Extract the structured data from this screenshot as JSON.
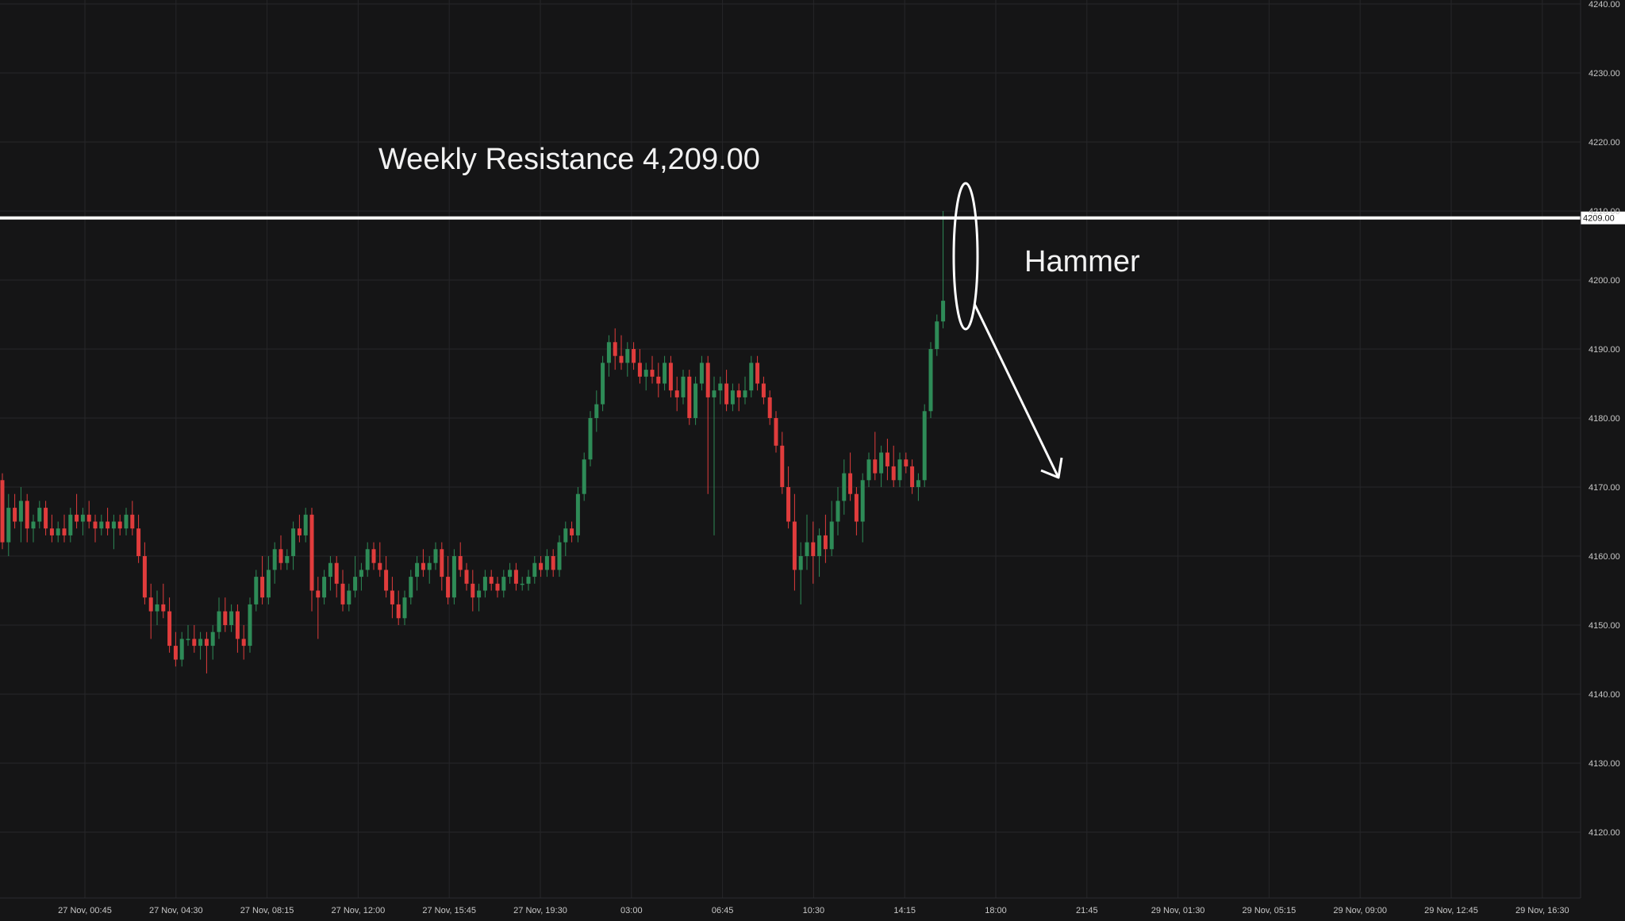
{
  "chart_data": {
    "type": "candlestick",
    "title": "",
    "ylim": [
      4115,
      4241
    ],
    "grid": true,
    "y_ticks": [
      "4240.00",
      "4230.00",
      "4220.00",
      "4210.00",
      "4200.00",
      "4190.00",
      "4180.00",
      "4170.00",
      "4160.00",
      "4150.00",
      "4140.00",
      "4130.00",
      "4120.00"
    ],
    "x_ticks": [
      "27 Nov, 00:45",
      "27 Nov, 04:30",
      "27 Nov, 08:15",
      "27 Nov, 12:00",
      "27 Nov, 15:45",
      "27 Nov, 19:30",
      "03:00",
      "06:45",
      "10:30",
      "14:15",
      "18:00",
      "21:45",
      "29 Nov, 01:30",
      "29 Nov, 05:15",
      "29 Nov, 09:00",
      "29 Nov, 12:45",
      "29 Nov, 16:30"
    ],
    "resistance": {
      "value": 4209,
      "tag": "4209.00",
      "label": "Weekly Resistance 4,209.00"
    },
    "pattern_label": "Hammer",
    "colors": {
      "up": "#2e8b57",
      "down": "#e03c3c",
      "grid": "#262629",
      "line": "#ffffff",
      "text": "#c8c8c8"
    },
    "candles": [
      [
        4171,
        4172,
        4161,
        4162
      ],
      [
        4162,
        4169,
        4160,
        4167
      ],
      [
        4167,
        4169,
        4164,
        4165
      ],
      [
        4165,
        4170,
        4162,
        4168
      ],
      [
        4168,
        4169,
        4162,
        4164
      ],
      [
        4164,
        4166,
        4162,
        4165
      ],
      [
        4165,
        4168,
        4164,
        4167
      ],
      [
        4167,
        4168,
        4163,
        4164
      ],
      [
        4164,
        4166,
        4162,
        4163
      ],
      [
        4163,
        4165,
        4162,
        4164
      ],
      [
        4164,
        4166,
        4162,
        4163
      ],
      [
        4163,
        4167,
        4162,
        4166
      ],
      [
        4166,
        4169,
        4164,
        4165
      ],
      [
        4165,
        4167,
        4163,
        4166
      ],
      [
        4166,
        4168,
        4164,
        4165
      ],
      [
        4165,
        4166,
        4162,
        4164
      ],
      [
        4164,
        4166,
        4163,
        4165
      ],
      [
        4165,
        4167,
        4163,
        4164
      ],
      [
        4164,
        4166,
        4161,
        4165
      ],
      [
        4165,
        4166,
        4163,
        4164
      ],
      [
        4164,
        4167,
        4163,
        4166
      ],
      [
        4166,
        4168,
        4163,
        4164
      ],
      [
        4164,
        4166,
        4159,
        4160
      ],
      [
        4160,
        4162,
        4153,
        4154
      ],
      [
        4154,
        4156,
        4148,
        4152
      ],
      [
        4152,
        4155,
        4150,
        4153
      ],
      [
        4153,
        4156,
        4151,
        4152
      ],
      [
        4152,
        4154,
        4146,
        4147
      ],
      [
        4147,
        4149,
        4144,
        4145
      ],
      [
        4145,
        4149,
        4144,
        4148
      ],
      [
        4148,
        4150,
        4147,
        4148
      ],
      [
        4148,
        4150,
        4146,
        4147
      ],
      [
        4147,
        4149,
        4145,
        4148
      ],
      [
        4148,
        4149,
        4143,
        4147
      ],
      [
        4147,
        4150,
        4145,
        4149
      ],
      [
        4149,
        4154,
        4148,
        4152
      ],
      [
        4152,
        4154,
        4149,
        4150
      ],
      [
        4150,
        4153,
        4149,
        4152
      ],
      [
        4152,
        4153,
        4146,
        4148
      ],
      [
        4148,
        4150,
        4145,
        4147
      ],
      [
        4147,
        4154,
        4146,
        4153
      ],
      [
        4153,
        4158,
        4152,
        4157
      ],
      [
        4157,
        4160,
        4153,
        4154
      ],
      [
        4154,
        4160,
        4153,
        4158
      ],
      [
        4158,
        4162,
        4156,
        4161
      ],
      [
        4161,
        4163,
        4158,
        4159
      ],
      [
        4159,
        4161,
        4158,
        4160
      ],
      [
        4160,
        4165,
        4158,
        4164
      ],
      [
        4164,
        4166,
        4162,
        4163
      ],
      [
        4163,
        4167,
        4162,
        4166
      ],
      [
        4166,
        4167,
        4152,
        4155
      ],
      [
        4155,
        4157,
        4148,
        4154
      ],
      [
        4154,
        4158,
        4153,
        4157
      ],
      [
        4157,
        4160,
        4155,
        4159
      ],
      [
        4159,
        4160,
        4154,
        4156
      ],
      [
        4156,
        4158,
        4152,
        4153
      ],
      [
        4153,
        4156,
        4152,
        4155
      ],
      [
        4155,
        4160,
        4154,
        4157
      ],
      [
        4157,
        4159,
        4155,
        4158
      ],
      [
        4158,
        4162,
        4157,
        4161
      ],
      [
        4161,
        4162,
        4158,
        4159
      ],
      [
        4159,
        4162,
        4157,
        4158
      ],
      [
        4158,
        4160,
        4154,
        4155
      ],
      [
        4155,
        4157,
        4151,
        4153
      ],
      [
        4153,
        4155,
        4150,
        4151
      ],
      [
        4151,
        4155,
        4150,
        4154
      ],
      [
        4154,
        4158,
        4153,
        4157
      ],
      [
        4157,
        4160,
        4155,
        4159
      ],
      [
        4159,
        4161,
        4157,
        4158
      ],
      [
        4158,
        4160,
        4156,
        4159
      ],
      [
        4159,
        4162,
        4158,
        4161
      ],
      [
        4161,
        4162,
        4155,
        4157
      ],
      [
        4157,
        4160,
        4153,
        4154
      ],
      [
        4154,
        4161,
        4153,
        4160
      ],
      [
        4160,
        4162,
        4157,
        4158
      ],
      [
        4158,
        4159,
        4155,
        4156
      ],
      [
        4156,
        4158,
        4152,
        4154
      ],
      [
        4154,
        4156,
        4152,
        4155
      ],
      [
        4155,
        4158,
        4154,
        4157
      ],
      [
        4157,
        4158,
        4155,
        4156
      ],
      [
        4156,
        4157,
        4154,
        4155
      ],
      [
        4155,
        4158,
        4154,
        4157
      ],
      [
        4157,
        4159,
        4156,
        4158
      ],
      [
        4158,
        4159,
        4155,
        4156
      ],
      [
        4156,
        4157,
        4155,
        4156
      ],
      [
        4156,
        4158,
        4155,
        4157
      ],
      [
        4157,
        4160,
        4156,
        4159
      ],
      [
        4159,
        4160,
        4157,
        4158
      ],
      [
        4158,
        4161,
        4157,
        4160
      ],
      [
        4160,
        4161,
        4157,
        4158
      ],
      [
        4158,
        4163,
        4157,
        4162
      ],
      [
        4162,
        4165,
        4160,
        4164
      ],
      [
        4164,
        4165,
        4162,
        4163
      ],
      [
        4163,
        4170,
        4162,
        4169
      ],
      [
        4169,
        4175,
        4168,
        4174
      ],
      [
        4174,
        4181,
        4173,
        4180
      ],
      [
        4180,
        4184,
        4178,
        4182
      ],
      [
        4182,
        4189,
        4181,
        4188
      ],
      [
        4188,
        4192,
        4186,
        4191
      ],
      [
        4191,
        4193,
        4187,
        4189
      ],
      [
        4189,
        4192,
        4187,
        4188
      ],
      [
        4188,
        4191,
        4186,
        4190
      ],
      [
        4190,
        4191,
        4187,
        4188
      ],
      [
        4188,
        4190,
        4185,
        4186
      ],
      [
        4186,
        4188,
        4184,
        4187
      ],
      [
        4187,
        4189,
        4185,
        4186
      ],
      [
        4186,
        4188,
        4183,
        4185
      ],
      [
        4185,
        4189,
        4184,
        4188
      ],
      [
        4188,
        4189,
        4183,
        4184
      ],
      [
        4184,
        4186,
        4181,
        4183
      ],
      [
        4183,
        4187,
        4182,
        4186
      ],
      [
        4186,
        4187,
        4179,
        4180
      ],
      [
        4180,
        4186,
        4179,
        4185
      ],
      [
        4185,
        4189,
        4184,
        4188
      ],
      [
        4188,
        4189,
        4169,
        4183
      ],
      [
        4183,
        4186,
        4163,
        4184
      ],
      [
        4184,
        4186,
        4182,
        4185
      ],
      [
        4185,
        4187,
        4181,
        4182
      ],
      [
        4182,
        4185,
        4181,
        4184
      ],
      [
        4184,
        4185,
        4181,
        4183
      ],
      [
        4183,
        4186,
        4182,
        4184
      ],
      [
        4184,
        4189,
        4183,
        4188
      ],
      [
        4188,
        4189,
        4184,
        4185
      ],
      [
        4185,
        4186,
        4182,
        4183
      ],
      [
        4183,
        4184,
        4179,
        4180
      ],
      [
        4180,
        4181,
        4175,
        4176
      ],
      [
        4176,
        4178,
        4169,
        4170
      ],
      [
        4170,
        4173,
        4164,
        4165
      ],
      [
        4165,
        4169,
        4155,
        4158
      ],
      [
        4158,
        4162,
        4153,
        4160
      ],
      [
        4160,
        4166,
        4158,
        4162
      ],
      [
        4162,
        4165,
        4156,
        4160
      ],
      [
        4160,
        4164,
        4157,
        4163
      ],
      [
        4163,
        4166,
        4159,
        4161
      ],
      [
        4161,
        4168,
        4160,
        4165
      ],
      [
        4165,
        4170,
        4163,
        4168
      ],
      [
        4168,
        4174,
        4166,
        4172
      ],
      [
        4172,
        4175,
        4168,
        4169
      ],
      [
        4169,
        4170,
        4163,
        4165
      ],
      [
        4165,
        4172,
        4162,
        4171
      ],
      [
        4171,
        4175,
        4170,
        4174
      ],
      [
        4174,
        4178,
        4171,
        4172
      ],
      [
        4172,
        4176,
        4170,
        4175
      ],
      [
        4175,
        4177,
        4171,
        4173
      ],
      [
        4173,
        4176,
        4170,
        4171
      ],
      [
        4171,
        4175,
        4170,
        4174
      ],
      [
        4174,
        4175,
        4172,
        4173
      ],
      [
        4173,
        4174,
        4169,
        4170
      ],
      [
        4170,
        4172,
        4168,
        4171
      ],
      [
        4171,
        4182,
        4170,
        4181
      ],
      [
        4181,
        4191,
        4180,
        4190
      ],
      [
        4190,
        4195,
        4189,
        4194
      ],
      [
        4194,
        4210,
        4193,
        4197
      ]
    ]
  }
}
